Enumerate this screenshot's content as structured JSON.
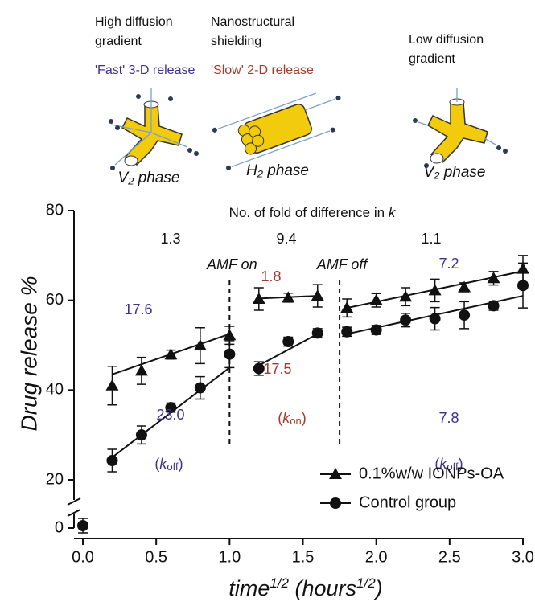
{
  "illustration": {
    "left": {
      "lines": [
        "High diffusion",
        "gradient"
      ],
      "release": "'Fast' 3-D release",
      "release_color": "#3d2f8c",
      "phase": "V₂ phase"
    },
    "middle": {
      "lines": [
        "Nanostructural",
        "shielding"
      ],
      "release": "'Slow' 2-D release",
      "release_color": "#a33a2b",
      "phase": "H₂ phase"
    },
    "right": {
      "lines": [
        "Low diffusion",
        "gradient"
      ],
      "phase": "V₂ phase"
    }
  },
  "chart_data": {
    "type": "scatter",
    "header_parts": [
      "No. of fold of difference in ",
      "k"
    ],
    "y_label": "Drug release %",
    "x_label_parts": [
      "time",
      "1/2",
      " (hours",
      "1/2",
      ")"
    ],
    "xlim": [
      0,
      3
    ],
    "ylim": [
      0,
      80
    ],
    "y_break": true,
    "xticks": [
      {
        "value": 0,
        "label": "0.0"
      },
      0.5,
      {
        "value": 1,
        "label": "1.0"
      },
      1.5,
      {
        "value": 2,
        "label": "2.0"
      },
      2.5,
      {
        "value": 3,
        "label": "3.0"
      }
    ],
    "yticks": [
      0,
      20,
      40,
      60,
      80
    ],
    "legend": "lower right",
    "series": [
      {
        "name": "0.1%w/w IONPs-OA",
        "marker": "triangle",
        "color": "#111111",
        "x": [
          0.2,
          0.4,
          0.6,
          0.8,
          1.0,
          1.2,
          1.4,
          1.6,
          1.8,
          2.0,
          2.2,
          2.4,
          2.6,
          2.8,
          3.0
        ],
        "values": [
          41,
          44.3,
          47.9,
          49.9,
          52.2,
          60.3,
          60.6,
          61,
          58.3,
          60,
          60.8,
          62.2,
          62.9,
          64.9,
          67
        ],
        "errors": [
          4.3,
          3,
          1,
          4,
          2,
          2.5,
          1,
          2.5,
          2,
          1.5,
          2,
          2.5,
          1,
          1.5,
          3
        ],
        "fits": [
          {
            "x": [
              0.2,
              1.0
            ],
            "values": [
              43.5,
              52.5
            ]
          },
          {
            "x": [
              1.2,
              1.6
            ],
            "values": [
              60.4,
              61
            ]
          },
          {
            "x": [
              1.8,
              3.0
            ],
            "values": [
              58.3,
              66.5
            ]
          }
        ]
      },
      {
        "name": "Control group",
        "marker": "circle",
        "color": "#111111",
        "x": [
          0.0,
          0.2,
          0.4,
          0.6,
          0.8,
          1.0,
          1.2,
          1.4,
          1.6,
          1.8,
          2.0,
          2.2,
          2.4,
          2.6,
          2.8,
          3.0
        ],
        "values": [
          1,
          24.3,
          30,
          36.1,
          40.5,
          48,
          44.8,
          50.8,
          52.7,
          53,
          53.4,
          55.6,
          55.9,
          56.7,
          58.8,
          63.3
        ],
        "errors": [
          3,
          2.5,
          2,
          1,
          2.5,
          3,
          1.5,
          1,
          1,
          1,
          1,
          1.5,
          2.5,
          3,
          1,
          5
        ],
        "fits": [
          {
            "x": [
              0.2,
              1.0
            ],
            "values": [
              25,
              45
            ]
          },
          {
            "x": [
              1.2,
              1.6
            ],
            "values": [
              45.5,
              52.5
            ]
          },
          {
            "x": [
              1.8,
              3.0
            ],
            "values": [
              52.5,
              61
            ]
          }
        ]
      }
    ],
    "vlines": [
      {
        "x": 1.0,
        "label": "AMF on"
      },
      {
        "x": 1.75,
        "label": "AMF off"
      }
    ],
    "annotations": [
      {
        "text": "1.3",
        "color": "#111111"
      },
      {
        "text": "9.4",
        "color": "#111111"
      },
      {
        "text": "1.1",
        "color": "#111111"
      },
      {
        "text": "17.6",
        "color": "#3d2f8c"
      },
      {
        "text": "23.0",
        "color": "#3d2f8c"
      },
      {
        "text": "1.8",
        "color": "#a33a2b"
      },
      {
        "text": "17.5",
        "color": "#a33a2b"
      },
      {
        "text": "7.2",
        "color": "#3d2f8c"
      },
      {
        "text": "7.8",
        "color": "#3d2f8c"
      },
      {
        "parts": [
          "(",
          "k",
          "off",
          ")"
        ],
        "color": "#3d2f8c"
      },
      {
        "parts": [
          "(",
          "k",
          "on",
          ")"
        ],
        "color": "#a33a2b"
      },
      {
        "parts": [
          "(",
          "k",
          "off",
          ")"
        ],
        "color": "#3d2f8c"
      }
    ]
  }
}
